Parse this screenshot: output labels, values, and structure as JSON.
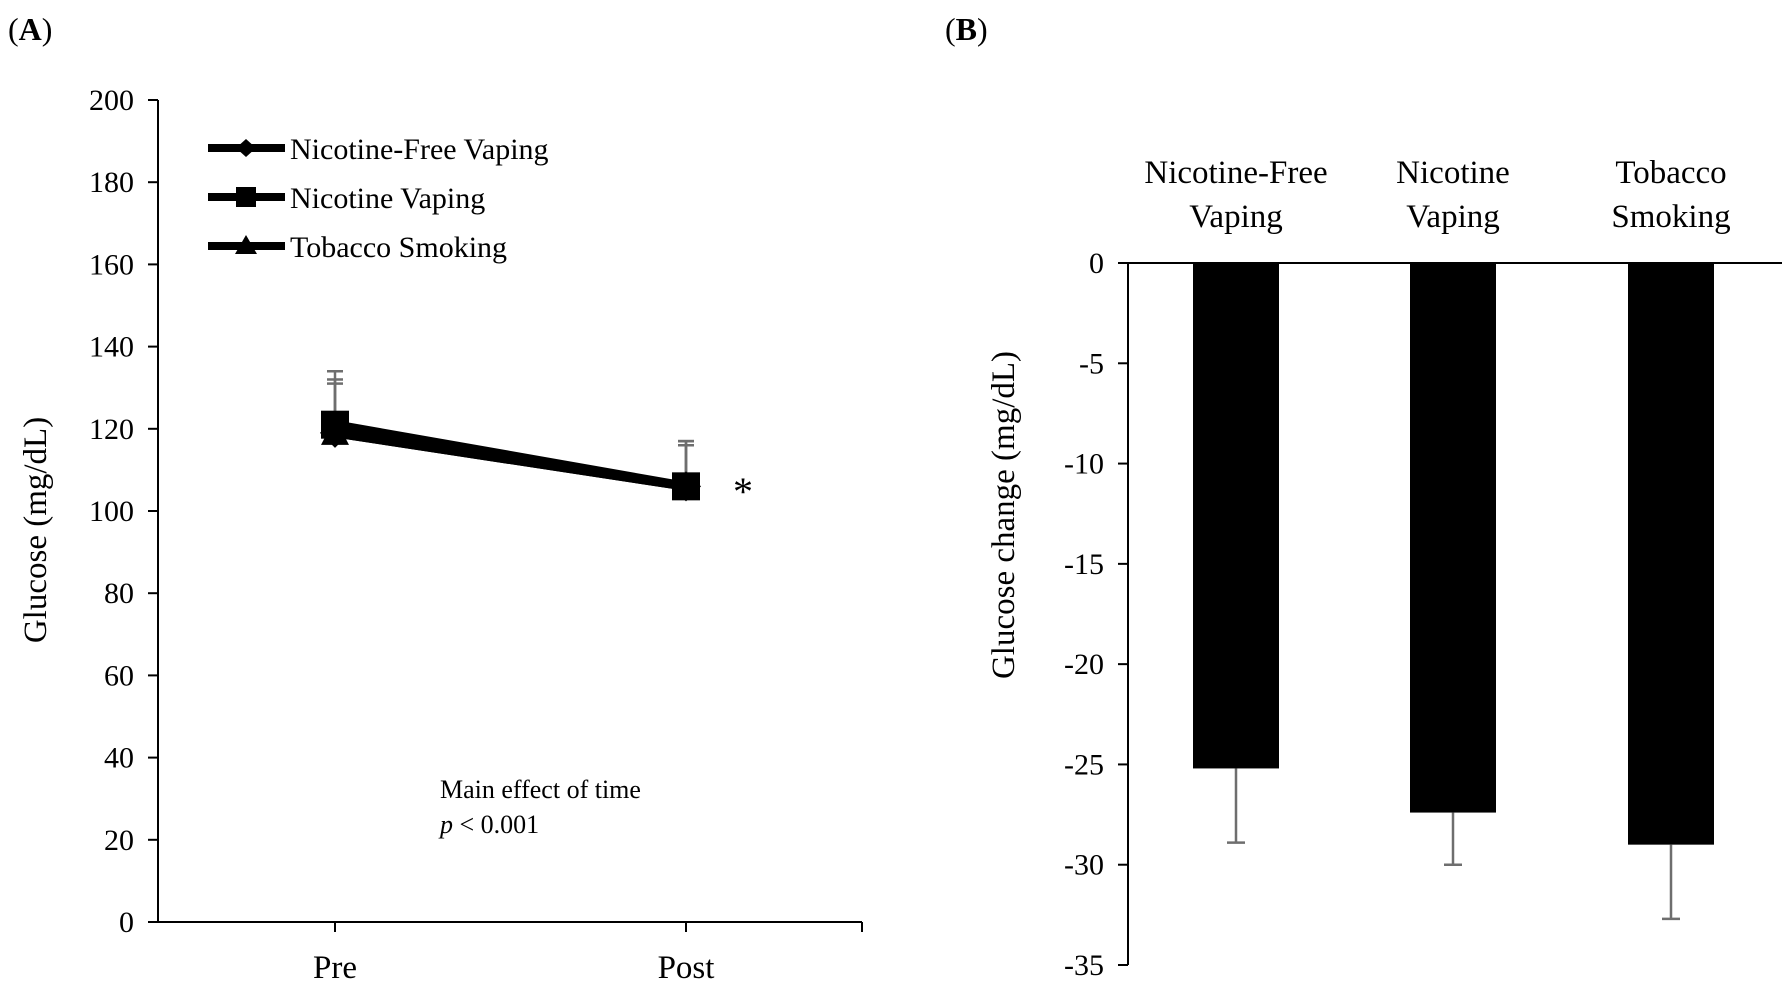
{
  "chart_data": [
    {
      "panel_label_open": "(",
      "panel_label_letter": "A",
      "panel_label_close": ")",
      "type": "line",
      "x": [
        "Pre",
        "Post"
      ],
      "ylabel": "Glucose (mg/dL)",
      "xlabel": "",
      "ylim": [
        0,
        200
      ],
      "yticks": [
        0,
        20,
        40,
        60,
        80,
        100,
        120,
        140,
        160,
        180,
        200
      ],
      "series": [
        {
          "name": "Nicotine-Free Vaping",
          "marker": "diamond",
          "values": [
            119,
            106
          ],
          "error": [
            13,
            11
          ]
        },
        {
          "name": "Nicotine Vaping",
          "marker": "square",
          "values": [
            121,
            106
          ],
          "error": [
            13,
            11
          ]
        },
        {
          "name": "Tobacco Smoking",
          "marker": "triangle",
          "values": [
            119,
            106
          ],
          "error": [
            12,
            10
          ]
        }
      ],
      "significance_marker": "*",
      "annotation_line1": "Main effect of time",
      "annotation_p": "p",
      "annotation_rest": " < 0.001",
      "legend_position": "top-left",
      "color": "#000000",
      "error_color": "#6e6e6e"
    },
    {
      "panel_label_open": "(",
      "panel_label_letter": "B",
      "panel_label_close": ")",
      "type": "bar",
      "categories": [
        [
          "Nicotine-Free",
          "Vaping"
        ],
        [
          "Nicotine",
          "Vaping"
        ],
        [
          "Tobacco",
          "Smoking"
        ]
      ],
      "values": [
        -25.2,
        -27.4,
        -29.0
      ],
      "error": [
        3.7,
        2.6,
        3.7
      ],
      "ylabel": "Glucose change (mg/dL)",
      "xlabel": "",
      "ylim": [
        -35,
        0
      ],
      "yticks": [
        0,
        -5,
        -10,
        -15,
        -20,
        -25,
        -30,
        -35
      ],
      "color": "#000000",
      "error_color": "#6e6e6e"
    }
  ]
}
